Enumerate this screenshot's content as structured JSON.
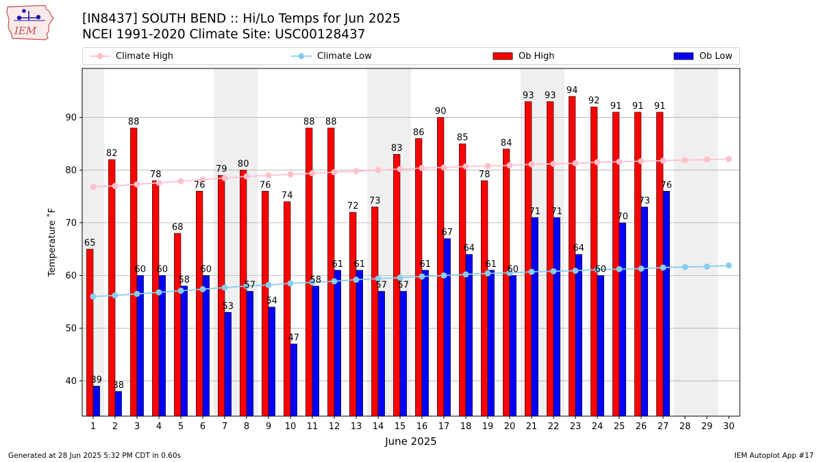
{
  "header": {
    "title_line1": "[IN8437] SOUTH BEND :: Hi/Lo Temps for Jun 2025",
    "title_line2": "NCEI 1991-2020 Climate Site: USC00128437",
    "logo_text": "IEM"
  },
  "footer": {
    "generated": "Generated at 28 Jun 2025 5:32 PM CDT in 0.60s",
    "app": "IEM Autoplot App #17"
  },
  "chart_data": {
    "type": "bar",
    "xlabel": "June 2025",
    "ylabel": "Temperature ˚F",
    "ylim": [
      33.3,
      99.3
    ],
    "xlim": [
      0.5,
      30.5
    ],
    "yticks": [
      40,
      50,
      60,
      70,
      80,
      90
    ],
    "grid": "horizontal",
    "legend_position": "top",
    "weekend_shading_days": [
      [
        1
      ],
      [
        7,
        8
      ],
      [
        14,
        15
      ],
      [
        21,
        22
      ],
      [
        28,
        29
      ]
    ],
    "categories": [
      1,
      2,
      3,
      4,
      5,
      6,
      7,
      8,
      9,
      10,
      11,
      12,
      13,
      14,
      15,
      16,
      17,
      18,
      19,
      20,
      21,
      22,
      23,
      24,
      25,
      26,
      27,
      28,
      29,
      30
    ],
    "series": [
      {
        "name": "Climate High",
        "kind": "line",
        "color": "#ffc0cb",
        "values": [
          76.8,
          77.0,
          77.3,
          77.6,
          77.9,
          78.2,
          78.5,
          78.8,
          79.0,
          79.2,
          79.4,
          79.6,
          79.8,
          80.0,
          80.2,
          80.4,
          80.5,
          80.7,
          80.8,
          80.9,
          81.1,
          81.2,
          81.3,
          81.5,
          81.6,
          81.7,
          81.8,
          81.9,
          82.0,
          82.1
        ]
      },
      {
        "name": "Climate Low",
        "kind": "line",
        "color": "#87ceeb",
        "values": [
          56.0,
          56.2,
          56.5,
          56.8,
          57.1,
          57.4,
          57.7,
          58.0,
          58.2,
          58.5,
          58.7,
          58.9,
          59.2,
          59.4,
          59.6,
          59.8,
          60.0,
          60.2,
          60.4,
          60.5,
          60.7,
          60.8,
          60.9,
          61.1,
          61.2,
          61.3,
          61.5,
          61.6,
          61.7,
          61.9
        ]
      },
      {
        "name": "Ob High",
        "kind": "bar",
        "color": "#ff0000",
        "values": [
          65,
          82,
          88,
          78,
          68,
          76,
          79,
          80,
          76,
          74,
          88,
          88,
          72,
          73,
          83,
          86,
          90,
          85,
          78,
          84,
          93,
          93,
          94,
          92,
          91,
          91,
          91,
          null,
          null,
          null
        ]
      },
      {
        "name": "Ob Low",
        "kind": "bar",
        "color": "#0000ff",
        "values": [
          39,
          38,
          60,
          60,
          58,
          60,
          53,
          57,
          54,
          47,
          58,
          61,
          61,
          57,
          57,
          61,
          67,
          64,
          61,
          60,
          71,
          71,
          64,
          60,
          70,
          73,
          76,
          null,
          null,
          null
        ]
      }
    ]
  }
}
